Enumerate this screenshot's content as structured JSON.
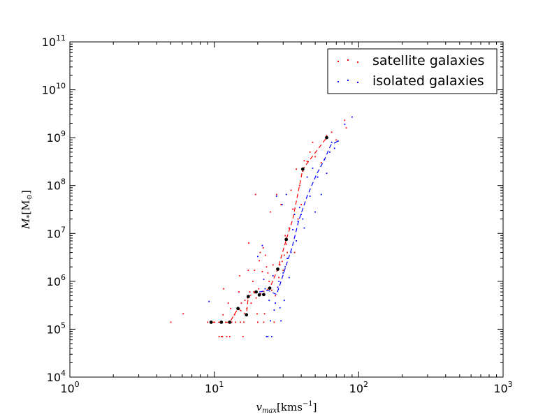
{
  "chart_data": {
    "type": "scatter",
    "xscale": "log",
    "yscale": "log",
    "xlim": [
      1,
      1000
    ],
    "ylim": [
      10000,
      100000000000
    ],
    "xlabel": "v_max [kms^-1]",
    "ylabel": "M_* [M_⊙]",
    "xlabel_parts": {
      "var": "v",
      "sub": "max",
      "unit": "[kms",
      "unit_exp": "−1",
      "unit_close": "]"
    },
    "ylabel_parts": {
      "var": "M",
      "sub": "*",
      "unit": "[M",
      "unit_sub": "⊙",
      "unit_close": "]"
    },
    "x_ticks": [
      {
        "value": 1,
        "base": "10",
        "exp": "0"
      },
      {
        "value": 10,
        "base": "10",
        "exp": "1"
      },
      {
        "value": 100,
        "base": "10",
        "exp": "2"
      },
      {
        "value": 1000,
        "base": "10",
        "exp": "3"
      }
    ],
    "y_ticks": [
      {
        "value": 10000,
        "base": "10",
        "exp": "4"
      },
      {
        "value": 100000,
        "base": "10",
        "exp": "5"
      },
      {
        "value": 1000000,
        "base": "10",
        "exp": "6"
      },
      {
        "value": 10000000,
        "base": "10",
        "exp": "7"
      },
      {
        "value": 100000000,
        "base": "10",
        "exp": "8"
      },
      {
        "value": 1000000000,
        "base": "10",
        "exp": "9"
      },
      {
        "value": 10000000000,
        "base": "10",
        "exp": "10"
      },
      {
        "value": 100000000000,
        "base": "10",
        "exp": "11"
      }
    ],
    "legend": {
      "position": "upper right",
      "entries": [
        "satellite galaxies",
        "isolated galaxies"
      ]
    },
    "series": [
      {
        "name": "satellite galaxies",
        "color": "#ff0000",
        "marker": "point",
        "points": [
          [
            5.0,
            140000
          ],
          [
            6.1,
            210000
          ],
          [
            9.0,
            140000
          ],
          [
            9.5,
            140000
          ],
          [
            10.0,
            140000
          ],
          [
            10.8,
            70000
          ],
          [
            11.0,
            140000
          ],
          [
            11.2,
            70000
          ],
          [
            11.4,
            70000
          ],
          [
            11.5,
            200000
          ],
          [
            11.6,
            700000
          ],
          [
            12.0,
            140000
          ],
          [
            12.2,
            70000
          ],
          [
            12.5,
            350000
          ],
          [
            12.6,
            140000
          ],
          [
            12.8,
            70000
          ],
          [
            13.0,
            270000
          ],
          [
            13.2,
            140000
          ],
          [
            13.8,
            200000
          ],
          [
            14.0,
            140000
          ],
          [
            14.5,
            270000
          ],
          [
            14.8,
            600000
          ],
          [
            15.0,
            1300000
          ],
          [
            15.2,
            140000
          ],
          [
            15.4,
            350000
          ],
          [
            15.8,
            70000
          ],
          [
            16.0,
            140000
          ],
          [
            16.3,
            400000
          ],
          [
            16.8,
            270000
          ],
          [
            17.0,
            450000
          ],
          [
            17.2,
            1700000
          ],
          [
            17.3,
            6300000
          ],
          [
            17.6,
            600000
          ],
          [
            18.0,
            350000
          ],
          [
            18.5,
            1000000
          ],
          [
            18.8,
            600000
          ],
          [
            19.0,
            1700000
          ],
          [
            19.3,
            65000000
          ],
          [
            19.5,
            450000
          ],
          [
            19.8,
            210000
          ],
          [
            20.0,
            140000
          ],
          [
            20.3,
            700000
          ],
          [
            20.5,
            2700000
          ],
          [
            20.8,
            4000000
          ],
          [
            21.0,
            550000
          ],
          [
            21.5,
            1600000
          ],
          [
            21.8,
            5000000
          ],
          [
            22.0,
            140000
          ],
          [
            22.3,
            210000
          ],
          [
            22.6,
            3500000
          ],
          [
            23.0,
            2000000
          ],
          [
            23.5,
            1500000
          ],
          [
            24.0,
            1000000
          ],
          [
            24.5,
            28000000
          ],
          [
            25.0,
            650000
          ],
          [
            25.5,
            2200000
          ],
          [
            26.0,
            140000
          ],
          [
            26.5,
            500000
          ],
          [
            27.0,
            65000000
          ],
          [
            27.5,
            1700000
          ],
          [
            28.0,
            1200000
          ],
          [
            28.5,
            2200000
          ],
          [
            29.0,
            40000000
          ],
          [
            29.5,
            2600000
          ],
          [
            30.0,
            1700000
          ],
          [
            30.5,
            3500000
          ],
          [
            31.0,
            9000000
          ],
          [
            31.5,
            6000000
          ],
          [
            32.0,
            4000000
          ],
          [
            33.0,
            13000000
          ],
          [
            34.0,
            80000000
          ],
          [
            35.0,
            32000000
          ],
          [
            36.0,
            4000000
          ],
          [
            37.0,
            220000000
          ],
          [
            38.0,
            20000000
          ],
          [
            39.0,
            100000000
          ],
          [
            40.0,
            40000000
          ],
          [
            41.0,
            200000000
          ],
          [
            42.0,
            330000000
          ],
          [
            44.0,
            320000000
          ],
          [
            46.0,
            500000000
          ],
          [
            48.0,
            800000000
          ],
          [
            50.0,
            400000000
          ],
          [
            55.0,
            300000000
          ],
          [
            60.0,
            1100000000
          ],
          [
            65.0,
            1300000000
          ],
          [
            70.0,
            900000000
          ],
          [
            80.0,
            2300000000
          ],
          [
            82.0,
            1600000000
          ]
        ]
      },
      {
        "name": "isolated galaxies",
        "color": "#0000ff",
        "marker": "point",
        "points": [
          [
            9.2,
            380000
          ],
          [
            20.0,
            3300000
          ],
          [
            21.5,
            5600000
          ],
          [
            22.0,
            1100000
          ],
          [
            22.5,
            700000
          ],
          [
            23.0,
            70000
          ],
          [
            23.5,
            70000
          ],
          [
            24.0,
            400000
          ],
          [
            24.5,
            150000
          ],
          [
            25.0,
            70000
          ],
          [
            25.5,
            1300000
          ],
          [
            26.0,
            250000
          ],
          [
            26.5,
            350000
          ],
          [
            27.0,
            60000000
          ],
          [
            27.5,
            750000
          ],
          [
            28.0,
            1000000
          ],
          [
            28.5,
            280000
          ],
          [
            29.0,
            150000
          ],
          [
            29.5,
            40000000
          ],
          [
            30.0,
            1500000
          ],
          [
            30.5,
            400000
          ],
          [
            31.0,
            2000000
          ],
          [
            31.5,
            65000000
          ],
          [
            32.0,
            3000000
          ],
          [
            33.0,
            1200000
          ],
          [
            34.0,
            4000000
          ],
          [
            35.0,
            12000000
          ],
          [
            36.0,
            25000000
          ],
          [
            37.0,
            7000000
          ],
          [
            38.0,
            18000000
          ],
          [
            39.0,
            35000000
          ],
          [
            40.0,
            25000000
          ],
          [
            41.0,
            20000000
          ],
          [
            42.0,
            13000000
          ],
          [
            44.0,
            150000000
          ],
          [
            46.0,
            60000000
          ],
          [
            48.0,
            230000000
          ],
          [
            50.0,
            28000000
          ],
          [
            52.0,
            150000000
          ],
          [
            55.0,
            65000000
          ],
          [
            58.0,
            350000000
          ],
          [
            60.0,
            180000000
          ],
          [
            63.0,
            500000000
          ],
          [
            65.0,
            800000000
          ],
          [
            68.0,
            600000000
          ],
          [
            72.0,
            850000000
          ],
          [
            80.0,
            1900000000
          ],
          [
            90.0,
            2700000000
          ]
        ]
      },
      {
        "name": "satellite median",
        "color": "#ff0000",
        "line": "dashed",
        "points": [
          [
            9.5,
            140000
          ],
          [
            11.2,
            140000
          ],
          [
            12.8,
            140000
          ],
          [
            14.6,
            270000
          ],
          [
            16.7,
            200000
          ],
          [
            17.2,
            480000
          ],
          [
            19.5,
            600000
          ],
          [
            22.3,
            620000
          ],
          [
            24.2,
            720000
          ],
          [
            27.5,
            1800000
          ],
          [
            31.5,
            7500000
          ],
          [
            35.0,
            20000000
          ],
          [
            41.0,
            220000000
          ],
          [
            60.0,
            1000000000
          ]
        ]
      },
      {
        "name": "isolated median",
        "color": "#0000ff",
        "line": "dashed",
        "points": [
          [
            20.5,
            600000
          ],
          [
            23.5,
            650000
          ],
          [
            27.0,
            530000
          ],
          [
            29.0,
            1000000
          ],
          [
            31.5,
            2200000
          ],
          [
            34.5,
            5000000
          ],
          [
            38.5,
            19000000
          ],
          [
            44.0,
            60000000
          ],
          [
            51.0,
            170000000
          ],
          [
            58.0,
            350000000
          ],
          [
            64.0,
            700000000
          ],
          [
            72.0,
            850000000
          ]
        ]
      },
      {
        "name": "median markers",
        "color": "#000000",
        "marker": "dot",
        "points": [
          [
            9.5,
            140000
          ],
          [
            11.2,
            140000
          ],
          [
            12.8,
            140000
          ],
          [
            14.6,
            270000
          ],
          [
            16.7,
            200000
          ],
          [
            17.2,
            480000
          ],
          [
            19.5,
            600000
          ],
          [
            20.5,
            520000
          ],
          [
            22.0,
            530000
          ],
          [
            24.2,
            720000
          ],
          [
            27.5,
            1800000
          ],
          [
            31.5,
            7500000
          ],
          [
            41.0,
            220000000
          ],
          [
            60.0,
            1000000000
          ]
        ]
      }
    ]
  }
}
